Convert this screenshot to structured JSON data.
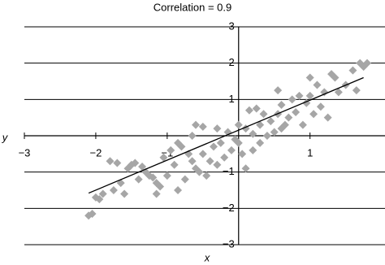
{
  "chart_data": {
    "type": "scatter",
    "title": "Correlation = 0.9",
    "x_label": "x",
    "y_label": "y",
    "xlim": [
      -3,
      2.05
    ],
    "ylim": [
      -3,
      3
    ],
    "xticks": [
      {
        "value": -3,
        "label": "−3"
      },
      {
        "value": -2,
        "label": "−2"
      },
      {
        "value": -1,
        "label": "−1"
      },
      1
    ],
    "yticks": [
      {
        "value": -3,
        "label": "−3"
      },
      {
        "value": -2,
        "label": "−2"
      },
      {
        "value": -1,
        "label": "−1"
      },
      1,
      2,
      3
    ],
    "grid": true,
    "series": [
      {
        "color": "#a6a6a6",
        "x": [
          -2.1,
          -2.05,
          -2.0,
          -1.95,
          -1.9,
          -1.75,
          -1.8,
          -1.7,
          -1.65,
          -1.6,
          -1.55,
          -1.5,
          -1.45,
          -1.4,
          -1.35,
          -1.3,
          -1.25,
          -1.2,
          -1.15,
          -1.15,
          -1.1,
          -1.05,
          -1.0,
          -0.95,
          -0.9,
          -0.85,
          -0.8,
          -0.75,
          -0.7,
          -0.65,
          -0.65,
          -0.6,
          -0.55,
          -0.5,
          -0.5,
          -0.45,
          -0.4,
          -0.35,
          -0.3,
          -0.3,
          -0.25,
          -0.2,
          -0.15,
          -0.1,
          -0.05,
          0.0,
          0.0,
          0.05,
          0.1,
          0.1,
          0.15,
          0.2,
          0.2,
          0.25,
          0.3,
          0.3,
          0.35,
          0.4,
          0.45,
          0.5,
          0.55,
          0.55,
          0.6,
          0.65,
          0.7,
          0.75,
          0.8,
          0.85,
          0.9,
          0.95,
          1.0,
          1.0,
          1.05,
          1.1,
          1.15,
          1.2,
          1.25,
          1.3,
          1.35,
          1.4,
          1.5,
          1.6,
          1.65,
          1.7,
          1.75,
          1.8,
          0.6,
          -0.6,
          -0.85
        ],
        "y": [
          -2.2,
          -2.15,
          -1.7,
          -1.75,
          -1.6,
          -1.5,
          -0.7,
          -0.75,
          -1.3,
          -1.6,
          -0.9,
          -0.8,
          -0.75,
          -1.2,
          -0.85,
          -1.0,
          -1.1,
          -1.15,
          -1.3,
          -1.6,
          -1.4,
          -0.6,
          -1.1,
          -0.4,
          -0.8,
          -1.5,
          -0.3,
          -1.2,
          -0.5,
          0.0,
          -0.7,
          -0.9,
          -1.0,
          -0.5,
          0.25,
          -1.1,
          -0.7,
          -0.3,
          0.2,
          -0.8,
          -0.2,
          -0.6,
          0.1,
          -0.4,
          -0.1,
          0.3,
          -0.2,
          -0.5,
          0.2,
          -0.9,
          0.7,
          0.05,
          -0.4,
          0.75,
          0.3,
          -0.2,
          0.6,
          0.0,
          0.4,
          0.1,
          0.6,
          1.25,
          0.85,
          0.3,
          0.5,
          1.0,
          0.65,
          1.1,
          0.3,
          0.9,
          1.6,
          1.1,
          0.6,
          1.4,
          0.8,
          1.2,
          0.5,
          1.7,
          1.6,
          1.2,
          1.4,
          1.8,
          1.25,
          2.0,
          1.9,
          2.0,
          0.2,
          0.3,
          -0.2
        ]
      }
    ],
    "trendline": {
      "color": "#000000",
      "x": [
        -2.1,
        1.75
      ],
      "y": [
        -1.58,
        1.6
      ]
    }
  }
}
